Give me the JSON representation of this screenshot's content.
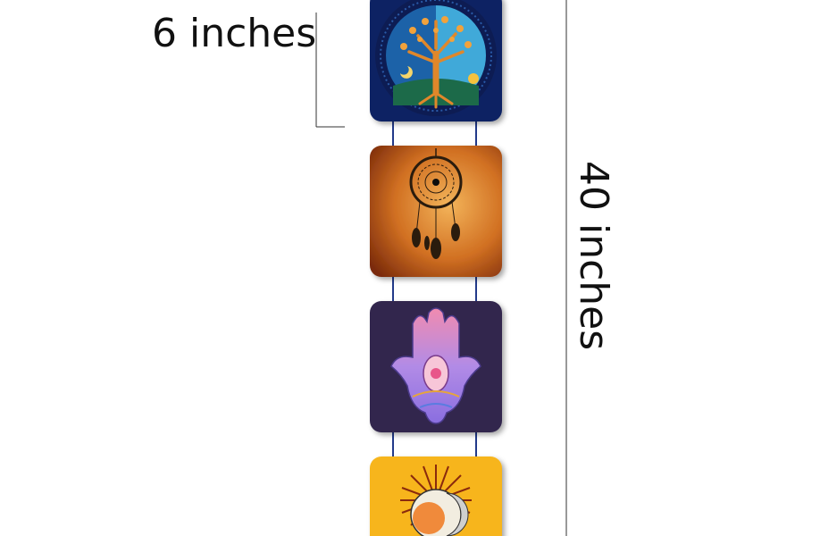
{
  "dimensions": {
    "width_label": "6 inches",
    "height_label": "40 inches"
  },
  "panels": [
    {
      "name": "tree-of-life-panel",
      "background": "#0e2463"
    },
    {
      "name": "dreamcatcher-panel",
      "background": "#c4641b"
    },
    {
      "name": "hamsa-panel",
      "background": "#33284d"
    },
    {
      "name": "sun-moon-panel",
      "background": "#f7b51d"
    }
  ],
  "colors": {
    "connector": "#223a8a",
    "dimension_line": "#333333"
  }
}
